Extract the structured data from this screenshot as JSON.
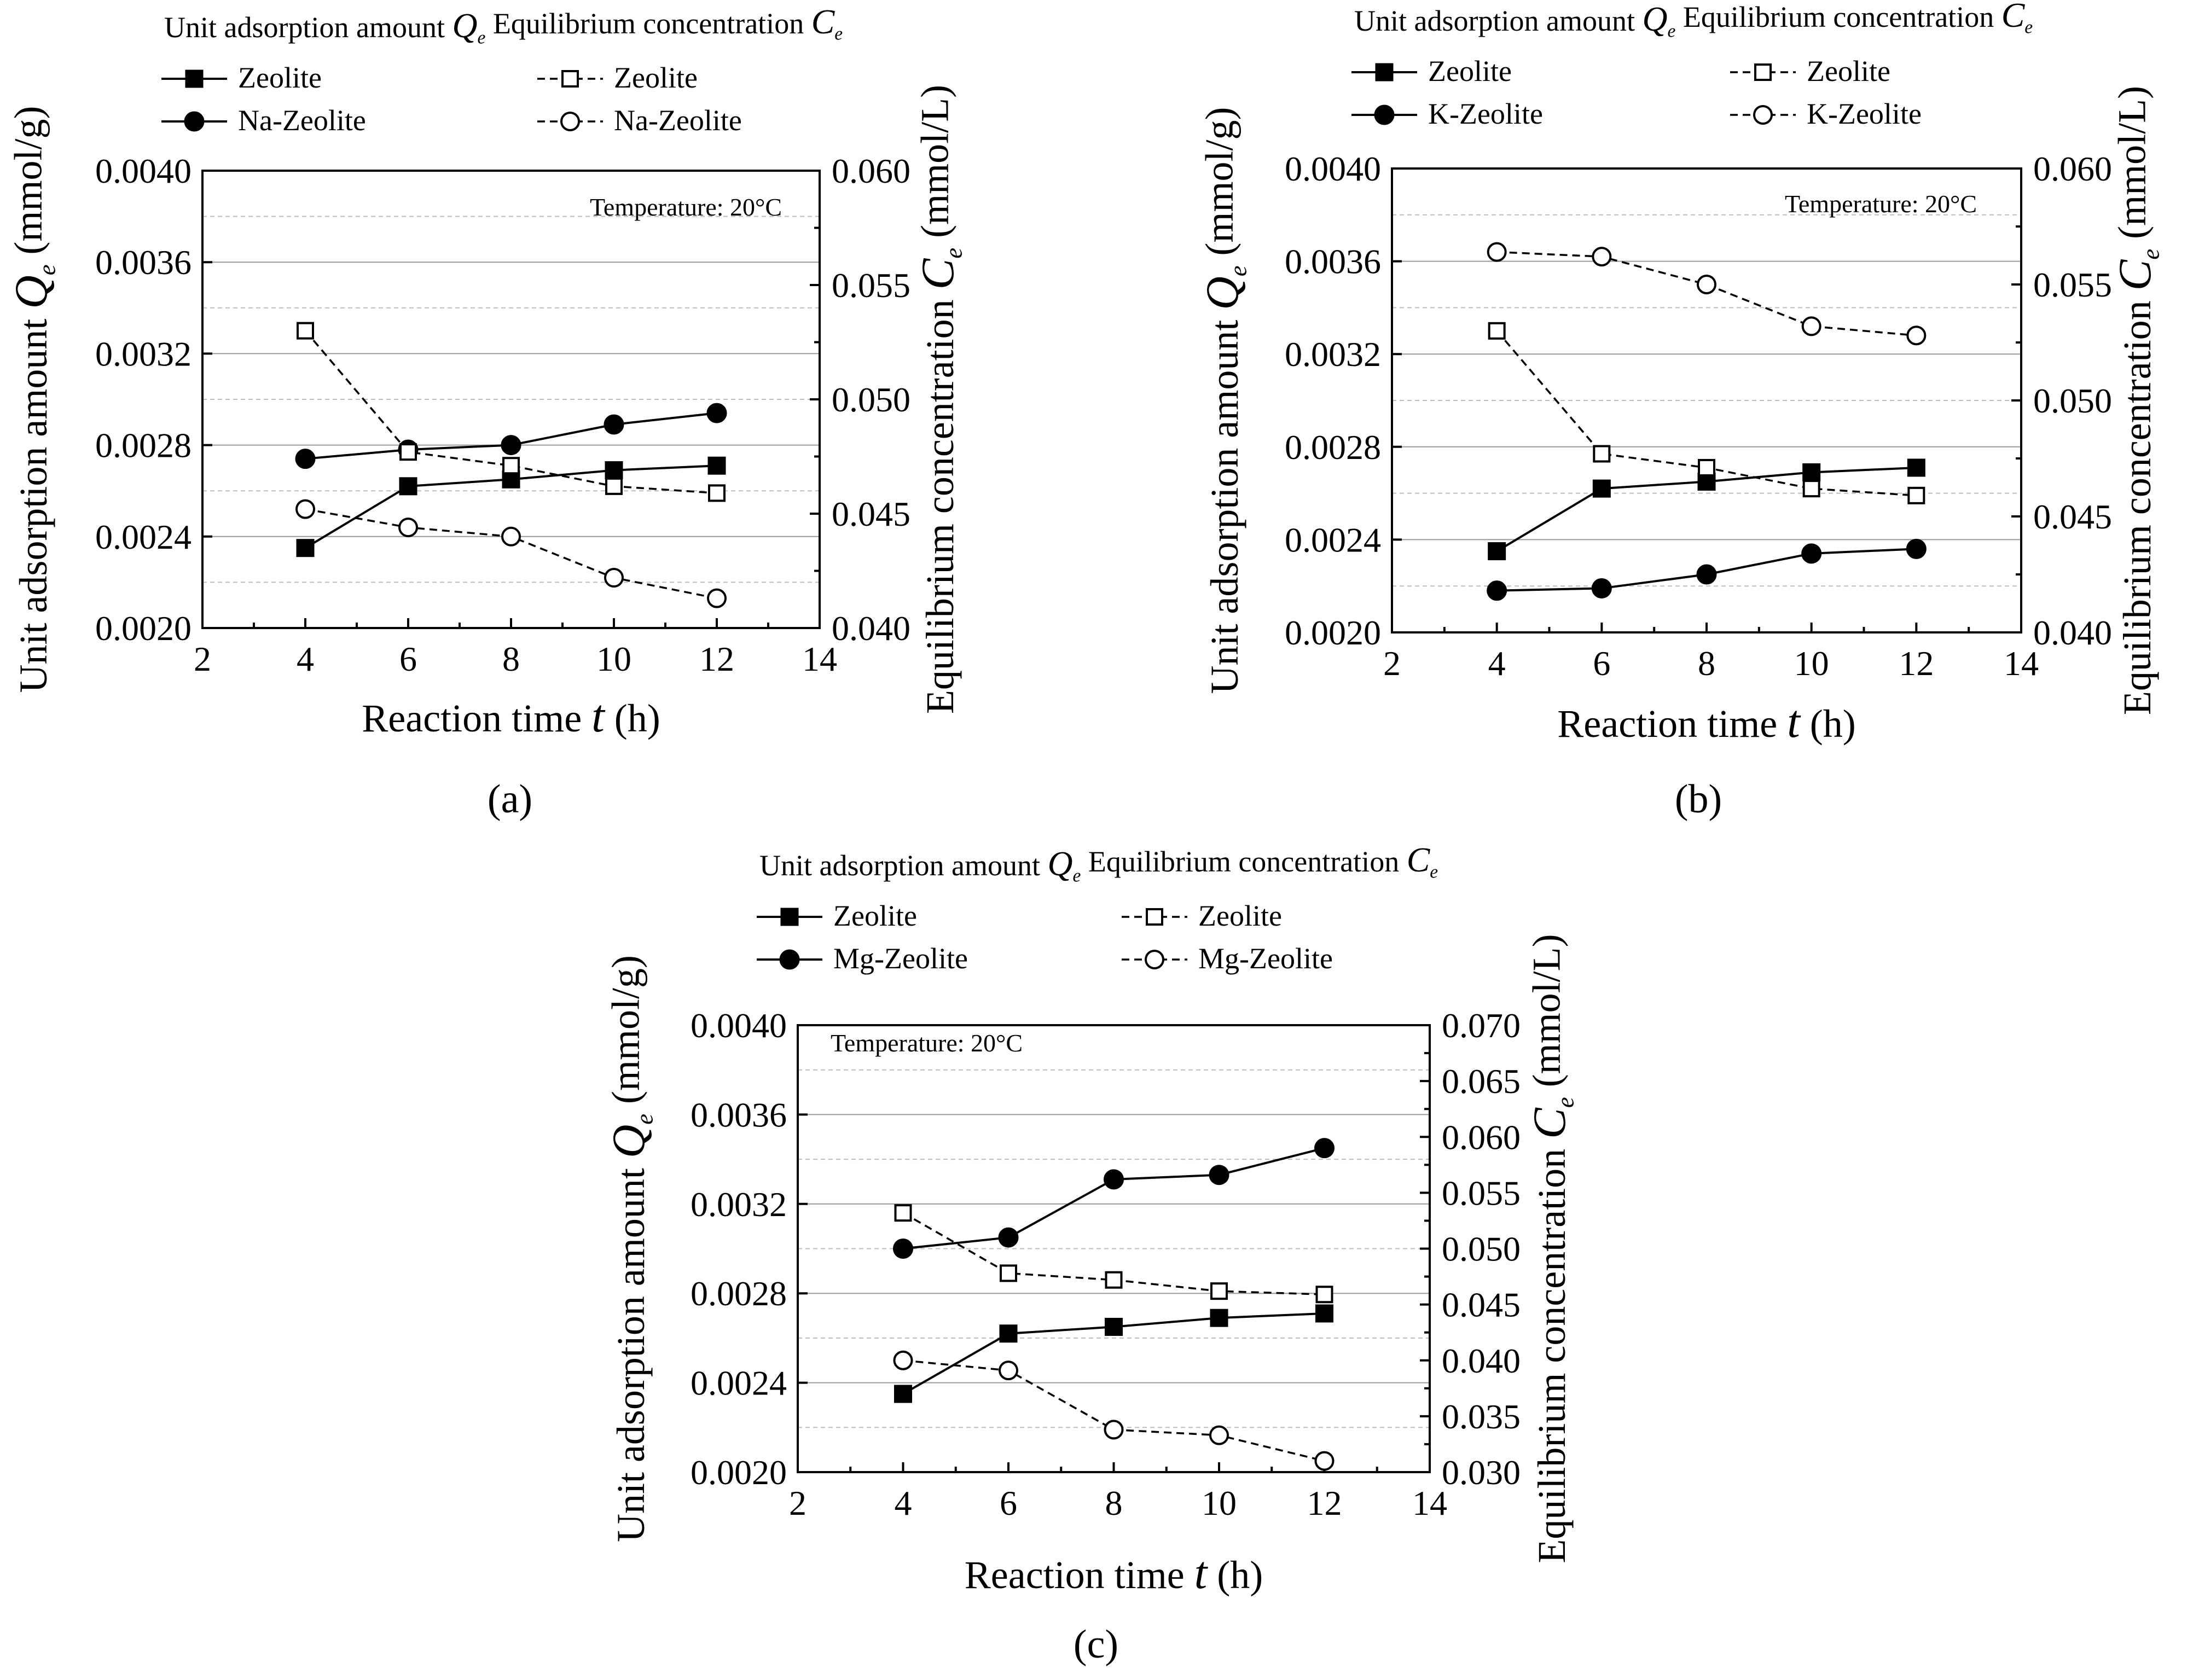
{
  "figure": {
    "panel_labels": [
      "(a)",
      "(b)",
      "(c)"
    ]
  },
  "chart_data": [
    {
      "type": "line",
      "panel": "(a)",
      "annotation": "Temperature: 20°C",
      "legend_header": [
        "Unit adsorption amount ",
        "Q",
        "e",
        " Equilibrium concentration ",
        "C",
        "e"
      ],
      "xlabel": [
        "Reaction time ",
        "t",
        " (h)"
      ],
      "ylabel_left": [
        "Unit adsorption amount ",
        "Q",
        "e",
        " (mmol/g)"
      ],
      "ylabel_right": [
        "Equilibrium concentration ",
        "C",
        "e",
        " (mmol/L)"
      ],
      "xlim": [
        2,
        14
      ],
      "xticks": [
        "2",
        "4",
        "6",
        "8",
        "10",
        "12",
        "14"
      ],
      "ylim_left": [
        0.002,
        0.004
      ],
      "yticks_left": [
        "0.0020",
        "0.0024",
        "0.0028",
        "0.0032",
        "0.0036",
        "0.0040"
      ],
      "ylim_right": [
        0.04,
        0.06
      ],
      "yticks_right": [
        "0.040",
        "0.045",
        "0.050",
        "0.055",
        "0.060"
      ],
      "x": [
        4,
        6,
        8,
        10,
        12
      ],
      "series": [
        {
          "name": "Zeolite",
          "axis": "left",
          "line": "solid",
          "marker": "filled-square",
          "values": [
            0.00235,
            0.00262,
            0.00265,
            0.00269,
            0.00271
          ]
        },
        {
          "name": "Na-Zeolite",
          "axis": "left",
          "line": "solid",
          "marker": "filled-circle",
          "values": [
            0.00274,
            0.00278,
            0.0028,
            0.00289,
            0.00294
          ]
        },
        {
          "name": "Zeolite",
          "axis": "right",
          "line": "dashed",
          "marker": "open-square",
          "values": [
            0.053,
            0.0477,
            0.0471,
            0.0462,
            0.0459
          ]
        },
        {
          "name": "Na-Zeolite",
          "axis": "right",
          "line": "dashed",
          "marker": "open-circle",
          "values": [
            0.0452,
            0.0444,
            0.044,
            0.0422,
            0.0413
          ]
        }
      ]
    },
    {
      "type": "line",
      "panel": "(b)",
      "annotation": "Temperature: 20°C",
      "legend_header": [
        "Unit adsorption amount ",
        "Q",
        "e",
        " Equilibrium concentration ",
        "C",
        "e"
      ],
      "xlabel": [
        "Reaction time ",
        "t",
        " (h)"
      ],
      "ylabel_left": [
        "Unit adsorption amount ",
        "Q",
        "e",
        " (mmol/g)"
      ],
      "ylabel_right": [
        "Equilibrium concentration ",
        "C",
        "e",
        " (mmol/L)"
      ],
      "xlim": [
        2,
        14
      ],
      "xticks": [
        "2",
        "4",
        "6",
        "8",
        "10",
        "12",
        "14"
      ],
      "ylim_left": [
        0.002,
        0.004
      ],
      "yticks_left": [
        "0.0020",
        "0.0024",
        "0.0028",
        "0.0032",
        "0.0036",
        "0.0040"
      ],
      "ylim_right": [
        0.04,
        0.06
      ],
      "yticks_right": [
        "0.040",
        "0.045",
        "0.050",
        "0.055",
        "0.060"
      ],
      "x": [
        4,
        6,
        8,
        10,
        12
      ],
      "series": [
        {
          "name": "Zeolite",
          "axis": "left",
          "line": "solid",
          "marker": "filled-square",
          "values": [
            0.00235,
            0.00262,
            0.00265,
            0.00269,
            0.00271
          ]
        },
        {
          "name": "K-Zeolite",
          "axis": "left",
          "line": "solid",
          "marker": "filled-circle",
          "values": [
            0.00218,
            0.00219,
            0.00225,
            0.00234,
            0.00236
          ]
        },
        {
          "name": "Zeolite",
          "axis": "right",
          "line": "dashed",
          "marker": "open-square",
          "values": [
            0.053,
            0.0477,
            0.0471,
            0.0462,
            0.0459
          ]
        },
        {
          "name": "K-Zeolite",
          "axis": "right",
          "line": "dashed",
          "marker": "open-circle",
          "values": [
            0.0564,
            0.0562,
            0.055,
            0.0532,
            0.0528
          ]
        }
      ]
    },
    {
      "type": "line",
      "panel": "(c)",
      "annotation": "Temperature: 20°C",
      "legend_header": [
        "Unit adsorption amount ",
        "Q",
        "e",
        " Equilibrium concentration ",
        "C",
        "e"
      ],
      "xlabel": [
        "Reaction time ",
        "t",
        " (h)"
      ],
      "ylabel_left": [
        "Unit adsorption amount ",
        "Q",
        "e",
        " (mmol/g)"
      ],
      "ylabel_right": [
        "Equilibrium concentration ",
        "C",
        "e",
        " (mmol/L)"
      ],
      "xlim": [
        2,
        14
      ],
      "xticks": [
        "2",
        "4",
        "6",
        "8",
        "10",
        "12",
        "14"
      ],
      "ylim_left": [
        0.002,
        0.004
      ],
      "yticks_left": [
        "0.0020",
        "0.0024",
        "0.0028",
        "0.0032",
        "0.0036",
        "0.0040"
      ],
      "ylim_right": [
        0.03,
        0.07
      ],
      "yticks_right": [
        "0.030",
        "0.035",
        "0.040",
        "0.045",
        "0.050",
        "0.055",
        "0.060",
        "0.065",
        "0.070"
      ],
      "x": [
        4,
        6,
        8,
        10,
        12
      ],
      "series": [
        {
          "name": "Zeolite",
          "axis": "left",
          "line": "solid",
          "marker": "filled-square",
          "values": [
            0.00235,
            0.00262,
            0.00265,
            0.00269,
            0.00271
          ]
        },
        {
          "name": "Mg-Zeolite",
          "axis": "left",
          "line": "solid",
          "marker": "filled-circle",
          "values": [
            0.003,
            0.00305,
            0.00331,
            0.00333,
            0.00345
          ]
        },
        {
          "name": "Zeolite",
          "axis": "right",
          "line": "dashed",
          "marker": "open-square",
          "values": [
            0.0532,
            0.0478,
            0.0472,
            0.0462,
            0.0459
          ]
        },
        {
          "name": "Mg-Zeolite",
          "axis": "right",
          "line": "dashed",
          "marker": "open-circle",
          "values": [
            0.04,
            0.0391,
            0.0338,
            0.0333,
            0.031
          ]
        }
      ]
    }
  ]
}
